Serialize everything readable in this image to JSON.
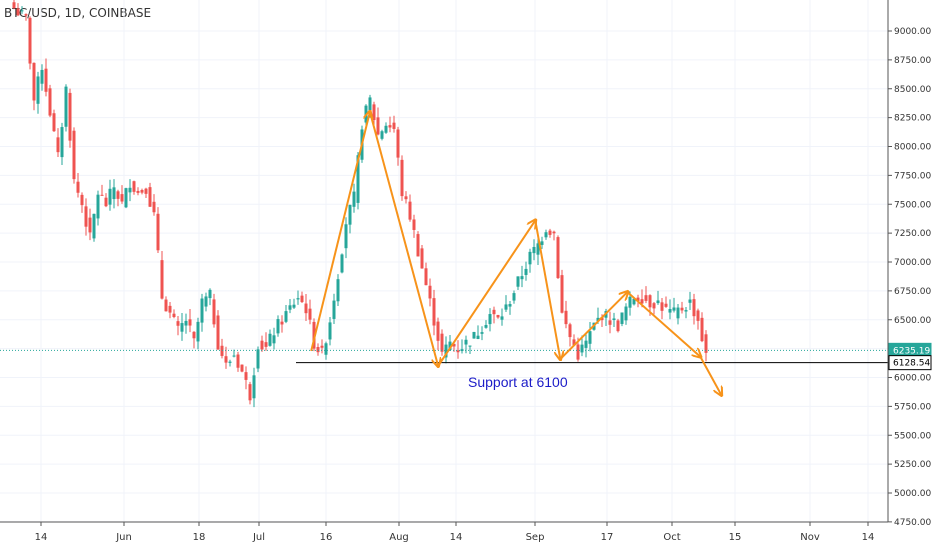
{
  "header": {
    "symbol": "BTC/USD, 1D, COINBASE"
  },
  "colors": {
    "up": "#26a69a",
    "down": "#ef5350",
    "arrow": "#f7931a",
    "support": "#000000",
    "note": "#1c1cc8",
    "grid": "#f0f3fa",
    "current_line": "#26a69a"
  },
  "chart_data": {
    "type": "candlestick",
    "title": "BTC/USD, 1D, COINBASE",
    "y_axis": {
      "min": 4750,
      "max": 9250,
      "ticks": [
        "9000.00",
        "8750.00",
        "8500.00",
        "8250.00",
        "8000.00",
        "7750.00",
        "7500.00",
        "7250.00",
        "7000.00",
        "6750.00",
        "6500.00",
        "6250.00",
        "6000.00",
        "5750.00",
        "5500.00",
        "5250.00",
        "5000.00",
        "4750.00"
      ]
    },
    "x_axis": {
      "labels": [
        "14",
        "Jun",
        "18",
        "Jul",
        "16",
        "Aug",
        "14",
        "Sep",
        "17",
        "Oct",
        "15",
        "Nov",
        "14"
      ]
    },
    "price_labels": [
      {
        "value": 6235.19,
        "text": "6235.19",
        "kind": "current"
      },
      {
        "value": 6128.54,
        "text": "6128.54",
        "kind": "support"
      }
    ],
    "support": {
      "value": 6128.54,
      "label": "Support at 6100"
    },
    "close_path": [
      [
        0,
        9200
      ],
      [
        3,
        9100
      ],
      [
        5,
        8400
      ],
      [
        7,
        8700
      ],
      [
        9,
        8300
      ],
      [
        11,
        7900
      ],
      [
        13,
        8500
      ],
      [
        15,
        7700
      ],
      [
        17,
        7500
      ],
      [
        19,
        7200
      ],
      [
        21,
        7600
      ],
      [
        23,
        7500
      ],
      [
        25,
        7650
      ],
      [
        27,
        7500
      ],
      [
        29,
        7700
      ],
      [
        31,
        7600
      ],
      [
        33,
        7650
      ],
      [
        35,
        7400
      ],
      [
        37,
        6700
      ],
      [
        39,
        6550
      ],
      [
        41,
        6400
      ],
      [
        43,
        6500
      ],
      [
        45,
        6300
      ],
      [
        47,
        6650
      ],
      [
        49,
        6700
      ],
      [
        51,
        6300
      ],
      [
        53,
        6100
      ],
      [
        55,
        6200
      ],
      [
        57,
        6050
      ],
      [
        59,
        5850
      ],
      [
        61,
        6300
      ],
      [
        63,
        6250
      ],
      [
        65,
        6400
      ],
      [
        67,
        6500
      ],
      [
        69,
        6600
      ],
      [
        71,
        6700
      ],
      [
        73,
        6600
      ],
      [
        75,
        6300
      ],
      [
        77,
        6200
      ],
      [
        79,
        6500
      ],
      [
        81,
        6900
      ],
      [
        83,
        7350
      ],
      [
        85,
        7550
      ],
      [
        87,
        8200
      ],
      [
        89,
        8400
      ],
      [
        91,
        8100
      ],
      [
        93,
        8200
      ],
      [
        95,
        8150
      ],
      [
        97,
        7600
      ],
      [
        99,
        7400
      ],
      [
        101,
        7100
      ],
      [
        103,
        6800
      ],
      [
        105,
        6500
      ],
      [
        107,
        6200
      ],
      [
        109,
        6300
      ],
      [
        111,
        6250
      ],
      [
        113,
        6300
      ],
      [
        115,
        6350
      ],
      [
        117,
        6450
      ],
      [
        119,
        6550
      ],
      [
        121,
        6500
      ],
      [
        123,
        6600
      ],
      [
        125,
        6750
      ],
      [
        127,
        6900
      ],
      [
        129,
        7050
      ],
      [
        131,
        7150
      ],
      [
        133,
        7300
      ],
      [
        135,
        7250
      ],
      [
        137,
        6550
      ],
      [
        139,
        6350
      ],
      [
        141,
        6200
      ],
      [
        143,
        6300
      ],
      [
        145,
        6450
      ],
      [
        147,
        6550
      ],
      [
        149,
        6500
      ],
      [
        151,
        6450
      ],
      [
        153,
        6600
      ],
      [
        155,
        6700
      ],
      [
        157,
        6700
      ],
      [
        159,
        6650
      ],
      [
        161,
        6650
      ],
      [
        163,
        6580
      ],
      [
        165,
        6550
      ],
      [
        167,
        6600
      ],
      [
        169,
        6650
      ],
      [
        171,
        6500
      ],
      [
        173,
        6180
      ]
    ],
    "arrows": [
      [
        [
          0.4,
          6230
        ],
        [
          20.1,
          8300
        ]
      ],
      [
        [
          20.1,
          8300
        ],
        [
          43.0,
          6100
        ]
      ],
      [
        [
          43.0,
          6100
        ],
        [
          75.6,
          7360
        ]
      ],
      [
        [
          75.6,
          7360
        ],
        [
          84.0,
          6160
        ]
      ],
      [
        [
          84.0,
          6160
        ],
        [
          106.5,
          6740
        ]
      ],
      [
        [
          106.5,
          6740
        ],
        [
          131.0,
          6180
        ]
      ],
      [
        [
          131.0,
          6180
        ],
        [
          138.0,
          5850
        ]
      ]
    ]
  },
  "annotations": {
    "support_text": "Support at 6100"
  }
}
